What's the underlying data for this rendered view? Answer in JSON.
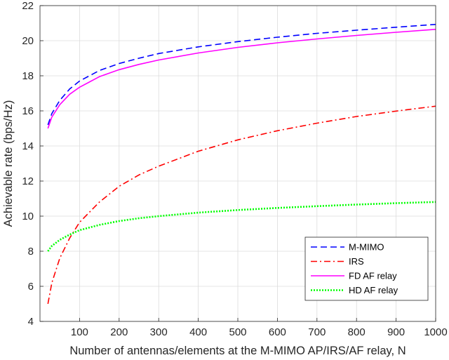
{
  "chart_data": {
    "type": "line",
    "title": "",
    "xlabel": "Number of antennas/elements at the M-MIMO AP/IRS/AF relay, N",
    "ylabel": "Achievable rate (bps/Hz)",
    "xlim": [
      0,
      1000
    ],
    "ylim": [
      4,
      22
    ],
    "xticks": [
      100,
      200,
      300,
      400,
      500,
      600,
      700,
      800,
      900,
      1000
    ],
    "yticks": [
      4,
      6,
      8,
      10,
      12,
      14,
      16,
      18,
      20,
      22
    ],
    "grid": true,
    "legend_position": "bottom-right",
    "x": [
      20,
      30,
      50,
      75,
      100,
      150,
      200,
      250,
      300,
      400,
      500,
      600,
      700,
      800,
      900,
      1000
    ],
    "series": [
      {
        "name": "M-MIMO",
        "color": "#0000ff",
        "style": "dashed",
        "values": [
          15.2,
          15.85,
          16.6,
          17.25,
          17.7,
          18.3,
          18.7,
          19.0,
          19.27,
          19.65,
          19.95,
          20.2,
          20.42,
          20.6,
          20.77,
          20.93
        ]
      },
      {
        "name": "IRS",
        "color": "#ff0000",
        "style": "dashdot",
        "values": [
          5.0,
          6.2,
          7.6,
          8.75,
          9.65,
          10.8,
          11.7,
          12.35,
          12.85,
          13.7,
          14.35,
          14.87,
          15.3,
          15.68,
          15.99,
          16.27
        ]
      },
      {
        "name": "FD AF relay",
        "color": "#ff00ff",
        "style": "solid",
        "values": [
          15.0,
          15.65,
          16.35,
          16.95,
          17.35,
          17.95,
          18.35,
          18.65,
          18.9,
          19.3,
          19.62,
          19.88,
          20.1,
          20.3,
          20.48,
          20.65
        ]
      },
      {
        "name": "HD AF relay",
        "color": "#00ff00",
        "style": "dotted",
        "values": [
          8.0,
          8.3,
          8.65,
          8.95,
          9.2,
          9.5,
          9.72,
          9.88,
          10.0,
          10.2,
          10.35,
          10.47,
          10.57,
          10.66,
          10.74,
          10.81
        ]
      }
    ]
  }
}
